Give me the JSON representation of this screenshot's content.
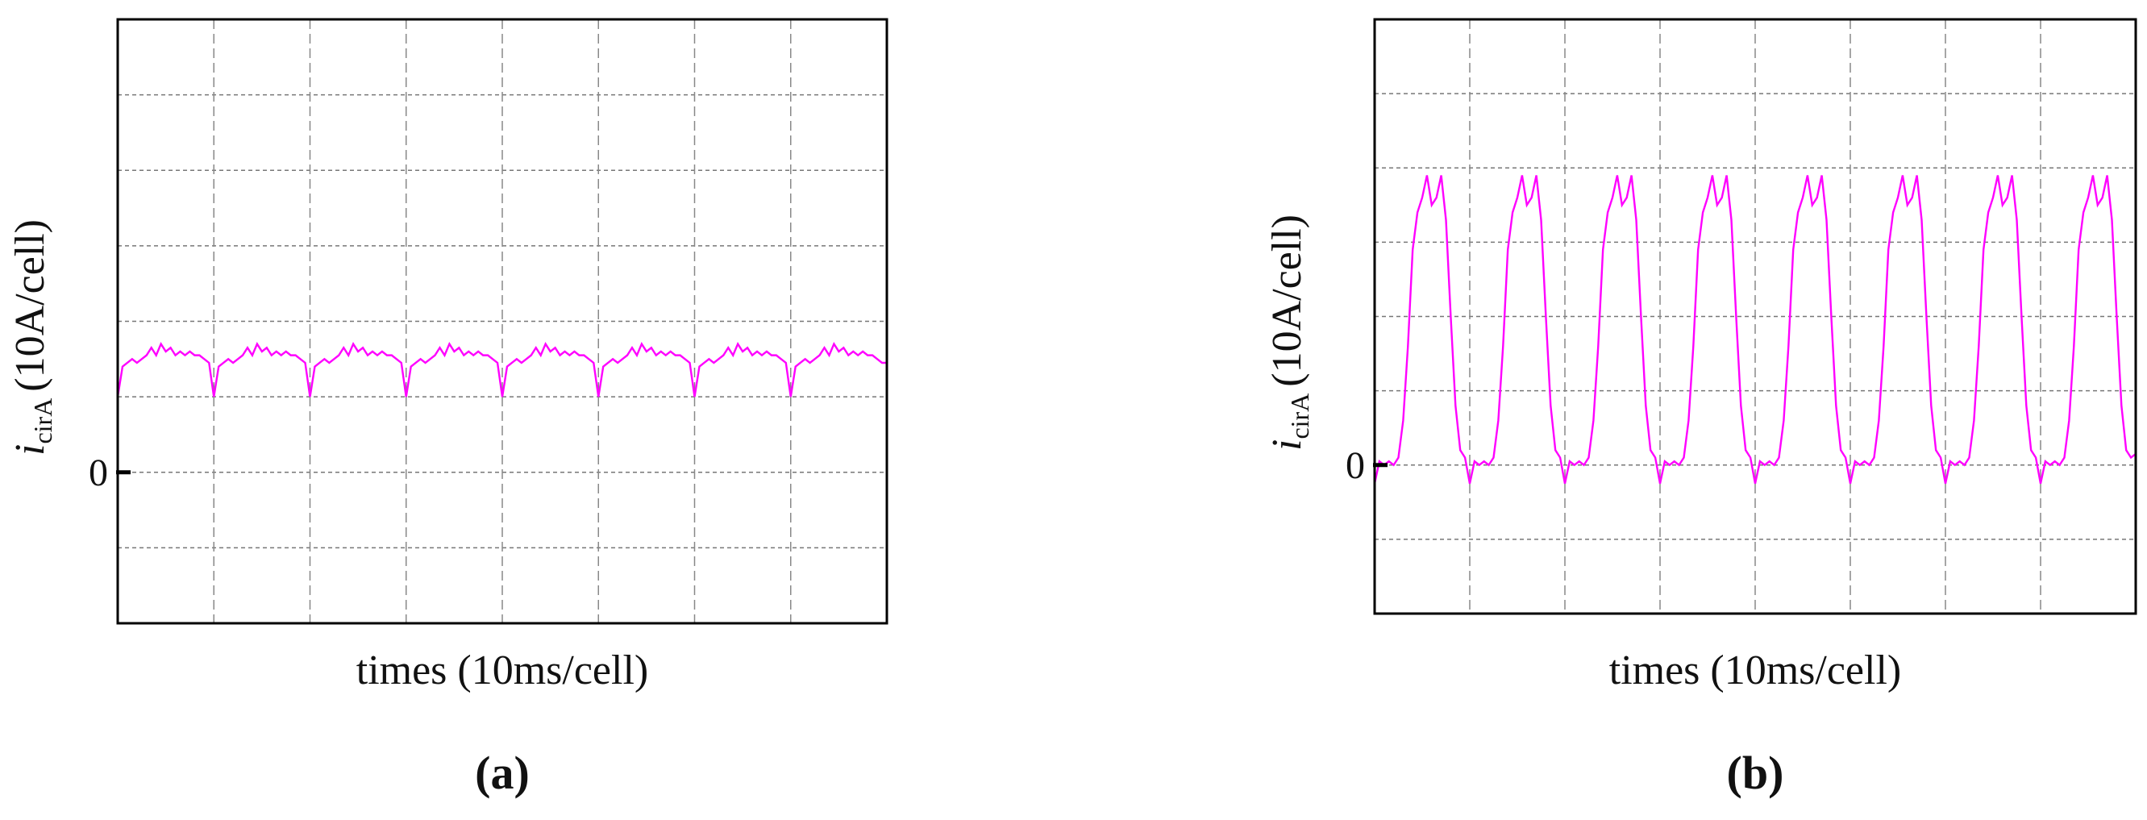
{
  "chart_data": [
    {
      "type": "line",
      "xlim": [
        0,
        8
      ],
      "ylim": [
        -2,
        6
      ],
      "yticks": [
        0
      ],
      "xgrid": [
        1,
        2,
        3,
        4,
        5,
        6,
        7
      ],
      "ygrid": [
        -1,
        0,
        1,
        2,
        3,
        4,
        5
      ],
      "ylabel_symbol": "i",
      "ylabel_subscript": "cirA",
      "ylabel": "(10A/cell)",
      "xlabel": "times (10ms/cell)",
      "panel_label": "(a)",
      "x": [
        0,
        0.05,
        0.1,
        0.15,
        0.2,
        0.25,
        0.3,
        0.35,
        0.4,
        0.45,
        0.5,
        0.55,
        0.6,
        0.65,
        0.7,
        0.75,
        0.8,
        0.85,
        0.9,
        0.95,
        1,
        1.05,
        1.1,
        1.15,
        1.2,
        1.25,
        1.3,
        1.35,
        1.4,
        1.45,
        1.5,
        1.55,
        1.6,
        1.65,
        1.7,
        1.75,
        1.8,
        1.85,
        1.9,
        1.95,
        2,
        2.05,
        2.1,
        2.15,
        2.2,
        2.25,
        2.3,
        2.35,
        2.4,
        2.45,
        2.5,
        2.55,
        2.6,
        2.65,
        2.7,
        2.75,
        2.8,
        2.85,
        2.9,
        2.95,
        3,
        3.05,
        3.1,
        3.15,
        3.2,
        3.25,
        3.3,
        3.35,
        3.4,
        3.45,
        3.5,
        3.55,
        3.6,
        3.65,
        3.7,
        3.75,
        3.8,
        3.85,
        3.9,
        3.95,
        4,
        4.05,
        4.1,
        4.15,
        4.2,
        4.25,
        4.3,
        4.35,
        4.4,
        4.45,
        4.5,
        4.55,
        4.6,
        4.65,
        4.7,
        4.75,
        4.8,
        4.85,
        4.9,
        4.95,
        5,
        5.05,
        5.1,
        5.15,
        5.2,
        5.25,
        5.3,
        5.35,
        5.4,
        5.45,
        5.5,
        5.55,
        5.6,
        5.65,
        5.7,
        5.75,
        5.8,
        5.85,
        5.9,
        5.95,
        6,
        6.05,
        6.1,
        6.15,
        6.2,
        6.25,
        6.3,
        6.35,
        6.4,
        6.45,
        6.5,
        6.55,
        6.6,
        6.65,
        6.7,
        6.75,
        6.8,
        6.85,
        6.9,
        6.95,
        7,
        7.05,
        7.1,
        7.15,
        7.2,
        7.25,
        7.3,
        7.35,
        7.4,
        7.45,
        7.5,
        7.55,
        7.6,
        7.65,
        7.7,
        7.75,
        7.8,
        7.85,
        7.9,
        7.95,
        8
      ],
      "series": [
        {
          "color": "#ff00ff",
          "values": [
            1.0,
            1.4,
            1.45,
            1.5,
            1.45,
            1.5,
            1.55,
            1.65,
            1.55,
            1.7,
            1.6,
            1.65,
            1.55,
            1.6,
            1.55,
            1.6,
            1.55,
            1.55,
            1.5,
            1.45,
            1.0,
            1.4,
            1.45,
            1.5,
            1.45,
            1.5,
            1.55,
            1.65,
            1.55,
            1.7,
            1.6,
            1.65,
            1.55,
            1.6,
            1.55,
            1.6,
            1.55,
            1.55,
            1.5,
            1.45,
            1.0,
            1.4,
            1.45,
            1.5,
            1.45,
            1.5,
            1.55,
            1.65,
            1.55,
            1.7,
            1.6,
            1.65,
            1.55,
            1.6,
            1.55,
            1.6,
            1.55,
            1.55,
            1.5,
            1.45,
            1.0,
            1.4,
            1.45,
            1.5,
            1.45,
            1.5,
            1.55,
            1.65,
            1.55,
            1.7,
            1.6,
            1.65,
            1.55,
            1.6,
            1.55,
            1.6,
            1.55,
            1.55,
            1.5,
            1.45,
            1.0,
            1.4,
            1.45,
            1.5,
            1.45,
            1.5,
            1.55,
            1.65,
            1.55,
            1.7,
            1.6,
            1.65,
            1.55,
            1.6,
            1.55,
            1.6,
            1.55,
            1.55,
            1.5,
            1.45,
            1.0,
            1.4,
            1.45,
            1.5,
            1.45,
            1.5,
            1.55,
            1.65,
            1.55,
            1.7,
            1.6,
            1.65,
            1.55,
            1.6,
            1.55,
            1.6,
            1.55,
            1.55,
            1.5,
            1.45,
            1.0,
            1.4,
            1.45,
            1.5,
            1.45,
            1.5,
            1.55,
            1.65,
            1.55,
            1.7,
            1.6,
            1.65,
            1.55,
            1.6,
            1.55,
            1.6,
            1.55,
            1.55,
            1.5,
            1.45,
            1.0,
            1.4,
            1.45,
            1.5,
            1.45,
            1.5,
            1.55,
            1.65,
            1.55,
            1.7,
            1.6,
            1.65,
            1.55,
            1.6,
            1.55,
            1.6,
            1.55,
            1.55,
            1.5,
            1.45,
            1.45
          ]
        }
      ]
    },
    {
      "type": "line",
      "xlim": [
        0,
        8
      ],
      "ylim": [
        -2,
        6
      ],
      "yticks": [
        0
      ],
      "xgrid": [
        1,
        2,
        3,
        4,
        5,
        6,
        7
      ],
      "ygrid": [
        -1,
        0,
        1,
        2,
        3,
        4,
        5
      ],
      "ylabel_symbol": "i",
      "ylabel_subscript": "cirA",
      "ylabel": "(10A/cell)",
      "xlabel": "times (10ms/cell)",
      "panel_label": "(b)",
      "x": [
        0,
        0.05,
        0.1,
        0.15,
        0.2,
        0.25,
        0.3,
        0.35,
        0.4,
        0.45,
        0.5,
        0.55,
        0.6,
        0.65,
        0.7,
        0.75,
        0.8,
        0.85,
        0.9,
        0.95,
        1,
        1.05,
        1.1,
        1.15,
        1.2,
        1.25,
        1.3,
        1.35,
        1.4,
        1.45,
        1.5,
        1.55,
        1.6,
        1.65,
        1.7,
        1.75,
        1.8,
        1.85,
        1.9,
        1.95,
        2,
        2.05,
        2.1,
        2.15,
        2.2,
        2.25,
        2.3,
        2.35,
        2.4,
        2.45,
        2.5,
        2.55,
        2.6,
        2.65,
        2.7,
        2.75,
        2.8,
        2.85,
        2.9,
        2.95,
        3,
        3.05,
        3.1,
        3.15,
        3.2,
        3.25,
        3.3,
        3.35,
        3.4,
        3.45,
        3.5,
        3.55,
        3.6,
        3.65,
        3.7,
        3.75,
        3.8,
        3.85,
        3.9,
        3.95,
        4,
        4.05,
        4.1,
        4.15,
        4.2,
        4.25,
        4.3,
        4.35,
        4.4,
        4.45,
        4.5,
        4.55,
        4.6,
        4.65,
        4.7,
        4.75,
        4.8,
        4.85,
        4.9,
        4.95,
        5,
        5.05,
        5.1,
        5.15,
        5.2,
        5.25,
        5.3,
        5.35,
        5.4,
        5.45,
        5.5,
        5.55,
        5.6,
        5.65,
        5.7,
        5.75,
        5.8,
        5.85,
        5.9,
        5.95,
        6,
        6.05,
        6.1,
        6.15,
        6.2,
        6.25,
        6.3,
        6.35,
        6.4,
        6.45,
        6.5,
        6.55,
        6.6,
        6.65,
        6.7,
        6.75,
        6.8,
        6.85,
        6.9,
        6.95,
        7,
        7.05,
        7.1,
        7.15,
        7.2,
        7.25,
        7.3,
        7.35,
        7.4,
        7.45,
        7.5,
        7.55,
        7.6,
        7.65,
        7.7,
        7.75,
        7.8,
        7.85,
        7.9,
        7.95,
        8
      ],
      "series": [
        {
          "color": "#ff00ff",
          "values": [
            -0.25,
            0.05,
            0.0,
            0.05,
            0.0,
            0.1,
            0.6,
            1.6,
            2.9,
            3.4,
            3.6,
            3.9,
            3.5,
            3.6,
            3.9,
            3.3,
            2.0,
            0.8,
            0.2,
            0.1,
            -0.25,
            0.05,
            0.0,
            0.05,
            0.0,
            0.1,
            0.6,
            1.6,
            2.9,
            3.4,
            3.6,
            3.9,
            3.5,
            3.6,
            3.9,
            3.3,
            2.0,
            0.8,
            0.2,
            0.1,
            -0.25,
            0.05,
            0.0,
            0.05,
            0.0,
            0.1,
            0.6,
            1.6,
            2.9,
            3.4,
            3.6,
            3.9,
            3.5,
            3.6,
            3.9,
            3.3,
            2.0,
            0.8,
            0.2,
            0.1,
            -0.25,
            0.05,
            0.0,
            0.05,
            0.0,
            0.1,
            0.6,
            1.6,
            2.9,
            3.4,
            3.6,
            3.9,
            3.5,
            3.6,
            3.9,
            3.3,
            2.0,
            0.8,
            0.2,
            0.1,
            -0.25,
            0.05,
            0.0,
            0.05,
            0.0,
            0.1,
            0.6,
            1.6,
            2.9,
            3.4,
            3.6,
            3.9,
            3.5,
            3.6,
            3.9,
            3.3,
            2.0,
            0.8,
            0.2,
            0.1,
            -0.25,
            0.05,
            0.0,
            0.05,
            0.0,
            0.1,
            0.6,
            1.6,
            2.9,
            3.4,
            3.6,
            3.9,
            3.5,
            3.6,
            3.9,
            3.3,
            2.0,
            0.8,
            0.2,
            0.1,
            -0.25,
            0.05,
            0.0,
            0.05,
            0.0,
            0.1,
            0.6,
            1.6,
            2.9,
            3.4,
            3.6,
            3.9,
            3.5,
            3.6,
            3.9,
            3.3,
            2.0,
            0.8,
            0.2,
            0.1,
            -0.25,
            0.05,
            0.0,
            0.05,
            0.0,
            0.1,
            0.6,
            1.6,
            2.9,
            3.4,
            3.6,
            3.9,
            3.5,
            3.6,
            3.9,
            3.3,
            2.0,
            0.8,
            0.2,
            0.1,
            0.15
          ]
        }
      ]
    }
  ]
}
